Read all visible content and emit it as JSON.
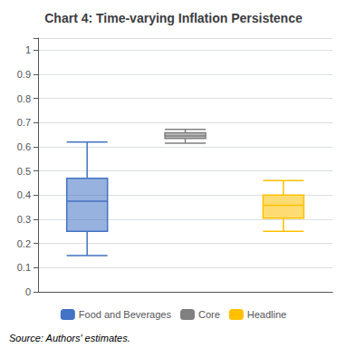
{
  "chart_data": {
    "type": "box",
    "title": "Chart 4: Time-varying Inflation Persistence",
    "annotation": "Source: Authors' estimates.",
    "series": [
      {
        "name": "Food and Beverages",
        "color": "#4472C4",
        "values": [
          0.15,
          0.25,
          0.375,
          0.47,
          0.62
        ]
      },
      {
        "name": "Core",
        "color": "#808080",
        "values": [
          0.615,
          0.635,
          0.645,
          0.658,
          0.672
        ]
      },
      {
        "name": "Headline",
        "color": "#FFC000",
        "values": [
          0.25,
          0.305,
          0.358,
          0.4,
          0.46
        ]
      }
    ],
    "ylim": [
      0,
      1.05
    ],
    "yticks": [
      0,
      0.1,
      0.2,
      0.3,
      0.4,
      0.5,
      0.6,
      0.7,
      0.8,
      0.9,
      1
    ],
    "grid": true,
    "legend": "bottom",
    "tick_labels": "y"
  }
}
